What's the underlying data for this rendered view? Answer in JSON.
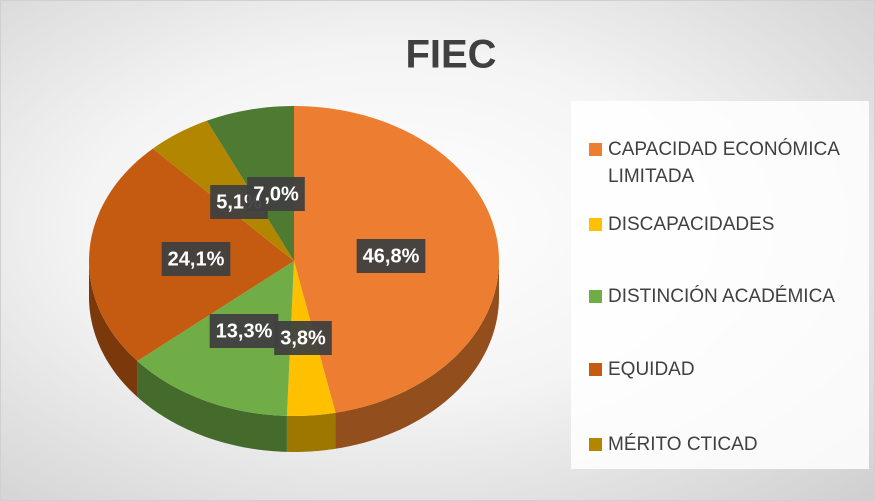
{
  "chart_data": {
    "type": "pie",
    "title": "FIEC",
    "categories": [
      "CAPACIDAD ECONÓMICA LIMITADA",
      "DISCAPACIDADES",
      "DISTINCIÓN ACADÉMICA",
      "EQUIDAD",
      "MÉRITO CTICAD",
      null
    ],
    "values": [
      46.8,
      3.8,
      13.3,
      24.1,
      5.1,
      7.0
    ],
    "value_labels": [
      "46,8%",
      "3,8%",
      "13,3%",
      "24,1%",
      "5,1%",
      "7,0%"
    ],
    "colors": [
      "#ED7D31",
      "#FFC000",
      "#70AD47",
      "#C55A11",
      "#B38600",
      "#4E7A31"
    ],
    "legend": "right"
  }
}
